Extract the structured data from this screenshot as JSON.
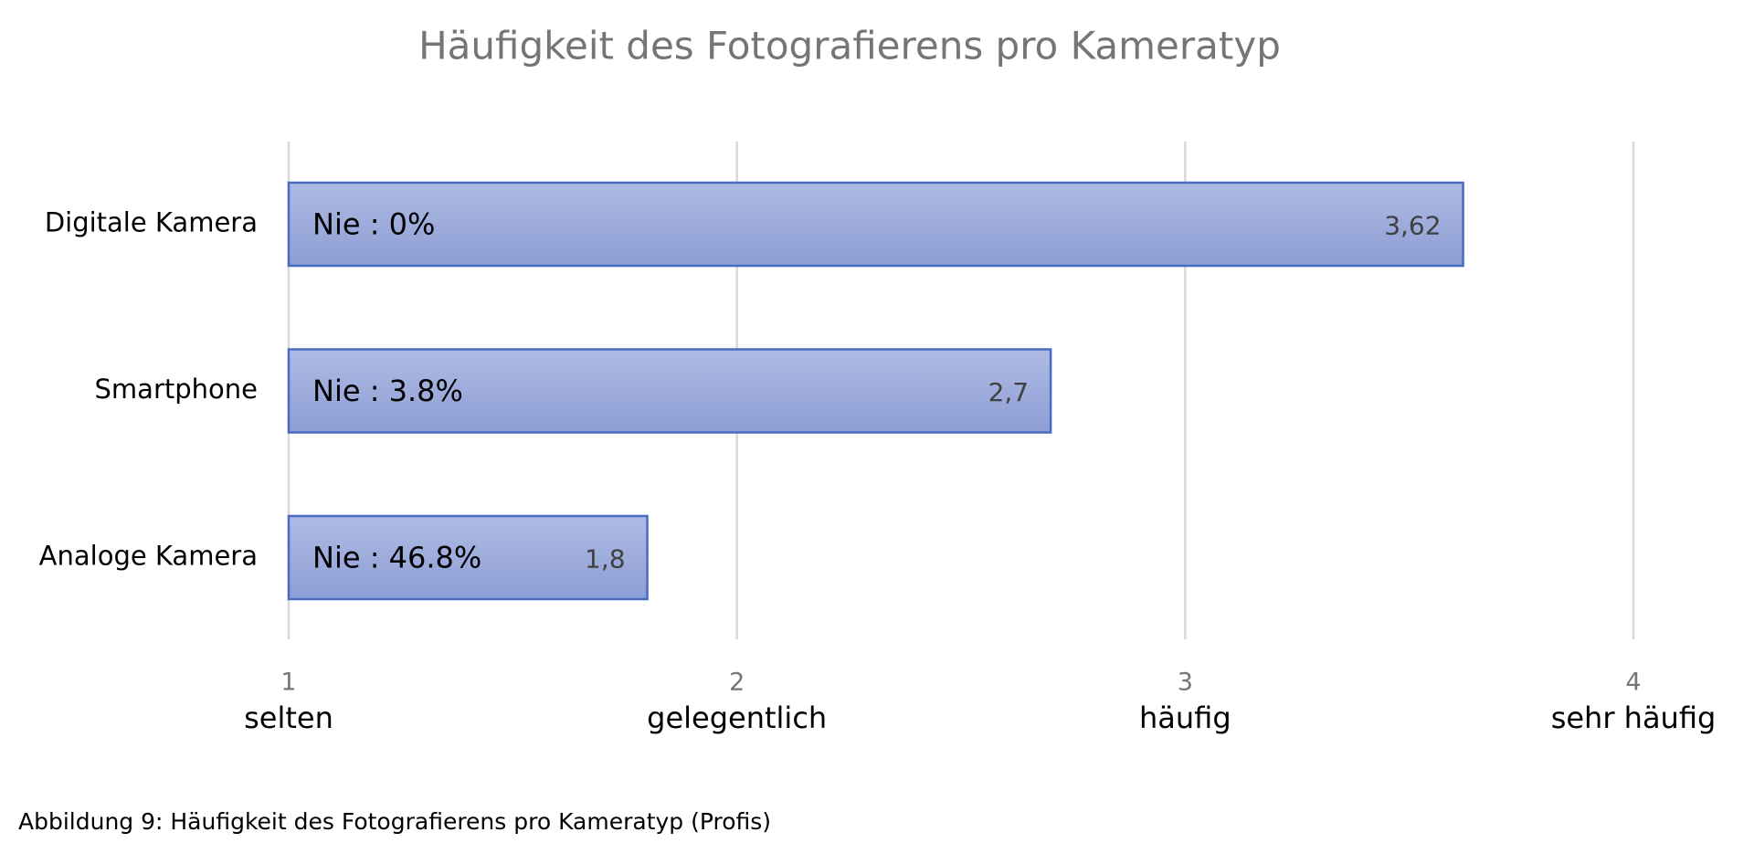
{
  "chart_data": {
    "type": "hbar",
    "title": "Häufigkeit des Fotografierens pro Kameratyp",
    "categories": [
      "Digitale Kamera",
      "Smartphone",
      "Analoge Kamera"
    ],
    "values": [
      3.62,
      2.7,
      1.8
    ],
    "value_labels": [
      "3,62",
      "2,7",
      "1,8"
    ],
    "annotations": [
      "Nie : 0%",
      "Nie : 3.8%",
      "Nie : 46.8%"
    ],
    "color": "#97a8da",
    "edge_color": "#4a6bc4",
    "xlim": [
      1,
      4
    ],
    "xticks": [
      1,
      2,
      3,
      4
    ],
    "xtick_descriptions": [
      "selten",
      "gelegentlich",
      "häufig",
      "sehr häufig"
    ],
    "grid": true,
    "caption": "Abbildung 9: Häufigkeit des Fotografierens pro Kameratyp (Profis)"
  }
}
